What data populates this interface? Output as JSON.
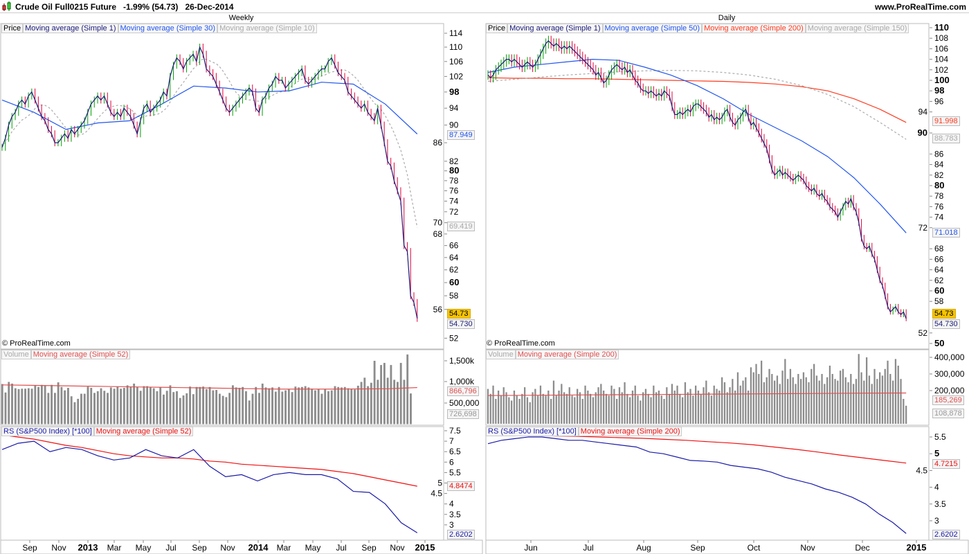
{
  "header": {
    "title": "Crude Oil Full0215 Future",
    "change": "-1.99% (54.73)",
    "date": "26-Dec-2014",
    "site": "www.ProRealTime.com"
  },
  "colors": {
    "price_line": "#1a1a7a",
    "ma_blue": "#2255ee",
    "ma_red": "#ff3b1f",
    "ma_gray": "#aaaaaa",
    "up": "#00a000",
    "down": "#e0003a",
    "volume": "#8c8c8c",
    "volume_ma": "#e05050",
    "rs": "#1a1aa8",
    "rs_ma": "#ee1111",
    "last_bg": "#f5c400"
  },
  "weekly": {
    "title": "Weekly",
    "legend": {
      "price": "Price",
      "ma1": "Moving average (Simple 1)",
      "ma30": "Moving average (Simple 30)",
      "ma10": "Moving average (Simple 10)"
    },
    "copyright": "© ProRealTime.com",
    "volume_legend": {
      "volume": "Volume",
      "ma": "Moving average (Simple 52)"
    },
    "rs_legend": {
      "rs": "RS (S&P500 Index) [*100]",
      "ma": "Moving average (Simple 52)"
    },
    "value_labels": {
      "ma30": "87.949",
      "ma10": "69.419",
      "last": "54.73",
      "ma1": "54.730",
      "vol_ma": "866,796",
      "vol": "726,698",
      "rs_ma": "4.8474",
      "rs": "2.6202"
    },
    "x_labels": [
      "Sep",
      "Nov",
      "2013",
      "Mar",
      "May",
      "Jul",
      "Sep",
      "Nov",
      "2014",
      "Mar",
      "May",
      "Jul",
      "Sep",
      "Nov",
      "2015"
    ]
  },
  "daily": {
    "title": "Daily",
    "legend": {
      "price": "Price",
      "ma1": "Moving average (Simple 1)",
      "ma50": "Moving average (Simple 50)",
      "ma200": "Moving average (Simple 200)",
      "ma150": "Moving average (Simple 150)"
    },
    "copyright": "© ProRealTime.com",
    "volume_legend": {
      "volume": "Volume",
      "ma": "Moving average (Simple 200)"
    },
    "rs_legend": {
      "rs": "RS (S&P500 Index) [*100]",
      "ma": "Moving average (Simple 200)"
    },
    "value_labels": {
      "ma200": "91.998",
      "ma150": "88.783",
      "ma50": "71.018",
      "last": "54.73",
      "ma1": "54.730",
      "vol_ma": "185,269",
      "vol": "108,878",
      "rs_ma": "4.7215",
      "rs": "2.6202"
    },
    "x_labels": [
      "Jun",
      "Jul",
      "Aug",
      "Sep",
      "Oct",
      "Nov",
      "Dec",
      "2015"
    ]
  },
  "chart_data": [
    {
      "type": "line",
      "title": "Crude Oil Full0215 Future - Weekly",
      "scale": "log",
      "ylim": [
        50,
        116
      ],
      "y_ticks": [
        "114",
        "110",
        "106",
        "102",
        "98",
        "94",
        "90",
        "86",
        "82",
        "80",
        "78",
        "76",
        "74",
        "72",
        "70",
        "68",
        "66",
        "64",
        "62",
        "60",
        "58",
        "56",
        "52"
      ],
      "close": [
        85,
        87,
        90,
        92,
        93,
        95,
        96,
        95,
        97,
        98,
        96,
        94,
        92,
        91,
        89,
        88,
        86,
        86,
        87,
        88,
        87,
        89,
        88,
        89,
        90,
        91,
        93,
        95,
        96,
        97,
        96,
        97,
        95,
        93,
        92,
        93,
        92,
        94,
        93,
        92,
        90,
        88,
        91,
        94,
        95,
        93,
        94,
        95,
        96,
        98,
        97,
        102,
        105,
        107,
        106,
        104,
        106,
        107,
        108,
        106,
        110,
        108,
        104,
        103,
        102,
        100,
        98,
        96,
        94,
        93,
        94,
        95,
        96,
        97,
        98,
        99,
        98,
        94,
        93,
        96,
        97,
        99,
        100,
        102,
        101,
        101,
        99,
        100,
        101,
        102,
        103,
        104,
        101,
        100,
        101,
        102,
        103,
        104,
        104,
        106,
        107,
        105,
        103,
        102,
        101,
        98,
        97,
        96,
        95,
        94,
        95,
        93,
        92,
        91,
        94,
        90,
        86,
        82,
        81,
        78,
        76,
        74,
        66,
        65,
        58,
        57,
        54.73
      ],
      "ma30_sampled": [
        96,
        93,
        89,
        90.5,
        91,
        95,
        99.5,
        99,
        98,
        98.3,
        100.5,
        100,
        95,
        87.949
      ],
      "volume_ylim": [
        0,
        1700000
      ],
      "volume_ticks": [
        "1,500k",
        "1,000k",
        "500,000"
      ],
      "volume_k": [
        950,
        750,
        1000,
        960,
        850,
        830,
        840,
        840,
        850,
        840,
        920,
        880,
        930,
        920,
        740,
        930,
        740,
        990,
        880,
        800,
        860,
        660,
        520,
        600,
        720,
        720,
        890,
        860,
        740,
        780,
        850,
        790,
        740,
        870,
        840,
        890,
        840,
        860,
        920,
        880,
        960,
        880,
        790,
        900,
        900,
        880,
        850,
        780,
        880,
        700,
        790,
        920,
        760,
        780,
        620,
        680,
        730,
        890,
        710,
        880,
        880,
        890,
        830,
        880,
        800,
        810,
        720,
        670,
        640,
        740,
        920,
        870,
        860,
        880,
        780,
        560,
        720,
        880,
        740,
        960,
        870,
        850,
        870,
        770,
        880,
        770,
        800,
        820,
        760,
        890,
        870,
        880,
        900,
        870,
        840,
        800,
        820,
        720,
        820,
        780,
        800,
        900,
        880,
        870,
        880,
        850,
        840,
        820,
        910,
        1000,
        1100,
        900,
        980,
        1500,
        1050,
        1400,
        1450,
        1100,
        1400,
        1050,
        1000,
        1450,
        1050,
        1650,
        727
      ],
      "volume_ma_k_sampled": [
        930,
        920,
        910,
        900,
        890,
        880,
        870,
        860,
        850,
        840,
        830,
        830,
        830,
        835,
        840,
        866.796
      ],
      "rs_ylim": [
        2.5,
        7.6
      ],
      "rs_ticks": [
        "7.5",
        "7",
        "6.5",
        "6",
        "5.5",
        "5",
        "4.5",
        "4",
        "3.5",
        "3"
      ],
      "rs_sampled": [
        6.6,
        6.9,
        7.0,
        6.5,
        6.7,
        6.6,
        6.3,
        6.1,
        6.2,
        6.6,
        6.3,
        6.2,
        6.6,
        5.8,
        5.3,
        5.4,
        5.1,
        5.4,
        5.5,
        5.4,
        5.4,
        5.2,
        4.6,
        4.55,
        4.0,
        3.1,
        2.6202
      ],
      "rs_ma_sampled": [
        7.3,
        7.2,
        7.1,
        6.95,
        6.8,
        6.7,
        6.55,
        6.4,
        6.3,
        6.25,
        6.2,
        6.2,
        6.15,
        6.05,
        6.0,
        5.9,
        5.85,
        5.8,
        5.75,
        5.7,
        5.65,
        5.55,
        5.45,
        5.3,
        5.15,
        5.0,
        4.8474
      ]
    },
    {
      "type": "line",
      "title": "Crude Oil Full0215 Future - Daily",
      "scale": "linear",
      "ylim": [
        49,
        111
      ],
      "y_ticks": [
        "110",
        "108",
        "106",
        "104",
        "102",
        "100",
        "98",
        "96",
        "94",
        "90",
        "86",
        "84",
        "82",
        "80",
        "78",
        "76",
        "74",
        "72",
        "68",
        "66",
        "64",
        "62",
        "60",
        "58",
        "52",
        "50"
      ],
      "close": [
        101,
        100.5,
        101,
        102,
        102.5,
        103,
        103.5,
        104,
        104,
        103.5,
        104,
        103.5,
        103,
        102.5,
        103,
        103.5,
        103,
        102.5,
        103,
        104,
        105,
        106,
        107,
        107.5,
        107,
        106.5,
        107,
        106.5,
        106,
        106.5,
        106,
        106.5,
        106,
        105.5,
        105,
        104.5,
        104,
        103.5,
        103,
        102.5,
        102,
        101,
        101.5,
        100.5,
        99.5,
        100,
        101,
        102,
        102.5,
        103,
        102.5,
        102,
        102.5,
        101.5,
        102,
        101,
        100,
        99.5,
        98.5,
        98,
        98,
        97.5,
        98,
        97.5,
        97,
        97.5,
        97,
        98,
        97.5,
        97,
        95,
        93.5,
        93.5,
        94,
        93.5,
        94,
        94.5,
        94,
        95,
        95.5,
        95.5,
        95,
        94.5,
        94,
        93,
        93.5,
        92.5,
        93,
        92.5,
        93,
        94,
        94.5,
        93,
        92,
        91.5,
        92.5,
        93,
        94,
        94.5,
        93,
        91.5,
        92,
        91,
        90,
        89,
        88,
        87,
        85,
        83,
        82,
        82.5,
        83,
        82,
        82.5,
        82,
        81.5,
        81,
        81.5,
        82,
        81.5,
        81,
        80,
        79.5,
        79,
        79.5,
        78.5,
        78,
        78.5,
        77.5,
        77,
        76,
        75.5,
        75,
        74,
        75,
        76,
        77,
        76.5,
        77.5,
        76,
        75,
        73,
        70,
        68.5,
        68,
        68.5,
        67,
        66,
        64,
        62,
        61,
        59,
        57,
        56,
        56.5,
        57,
        56,
        55.5,
        56,
        54.73
      ],
      "ma50_sampled": [
        101.5,
        102.5,
        103,
        103.5,
        104,
        103.8,
        102.5,
        101,
        99,
        96.5,
        93.5,
        91,
        88.5,
        85.5,
        81.5,
        76.5,
        71.018
      ],
      "ma200_sampled": [
        100.5,
        100.4,
        100.4,
        100.3,
        100.3,
        100.2,
        100.1,
        100,
        99.9,
        99.8,
        99.6,
        99.3,
        98.8,
        98,
        96.5,
        94.5,
        91.998
      ],
      "ma150_sampled": [
        99.8,
        100.2,
        100.6,
        101,
        101.3,
        101.6,
        101.8,
        101.9,
        101.8,
        101.5,
        101,
        100.2,
        99,
        97.3,
        95,
        92,
        88.783
      ],
      "volume_ylim": [
        0,
        420000
      ],
      "volume_ticks": [
        "400,000",
        "300,000",
        "200,000"
      ],
      "volume_k": [
        210,
        180,
        230,
        150,
        200,
        170,
        220,
        190,
        160,
        140,
        200,
        170,
        150,
        180,
        220,
        160,
        130,
        190,
        210,
        170,
        230,
        180,
        170,
        200,
        150,
        260,
        170,
        200,
        240,
        190,
        180,
        220,
        170,
        160,
        210,
        190,
        150,
        230,
        200,
        180,
        160,
        190,
        220,
        240,
        200,
        180,
        170,
        230,
        210,
        150,
        220,
        190,
        250,
        180,
        160,
        200,
        230,
        170,
        140,
        190,
        210,
        180,
        160,
        230,
        190,
        200,
        170,
        150,
        220,
        180,
        240,
        200,
        230,
        180,
        160,
        250,
        190,
        210,
        170,
        230,
        200,
        180,
        220,
        260,
        190,
        170,
        230,
        210,
        200,
        280,
        250,
        190,
        220,
        270,
        200,
        310,
        230,
        260,
        280,
        200,
        340,
        310,
        360,
        300,
        380,
        250,
        280,
        330,
        300,
        260,
        290,
        240,
        320,
        390,
        270,
        330,
        280,
        240,
        300,
        270,
        310,
        280,
        250,
        330,
        360,
        290,
        260,
        300,
        240,
        280,
        350,
        300,
        270,
        260,
        320,
        330,
        280,
        250,
        300,
        240,
        270,
        420,
        310,
        260,
        400,
        290,
        240,
        330,
        270,
        310,
        290,
        330,
        380,
        300,
        260,
        390,
        350,
        270,
        150,
        108.878
      ],
      "volume_ma_k_sampled": [
        170,
        172,
        174,
        176,
        178,
        180,
        182,
        184,
        185.269
      ],
      "rs_ylim": [
        2.5,
        5.7
      ],
      "rs_ticks": [
        "5.5",
        "5",
        "4.5",
        "4",
        "3.5",
        "3"
      ],
      "rs_sampled": [
        5.3,
        5.4,
        5.45,
        5.5,
        5.5,
        5.45,
        5.4,
        5.4,
        5.35,
        5.3,
        5.25,
        5.2,
        5.05,
        5.0,
        4.9,
        4.8,
        4.78,
        4.75,
        4.65,
        4.6,
        4.55,
        4.45,
        4.3,
        4.2,
        4.1,
        3.95,
        3.85,
        3.7,
        3.5,
        3.2,
        2.95,
        2.6202
      ],
      "rs_ma_sampled": [
        5.55,
        5.55,
        5.54,
        5.53,
        5.52,
        5.5,
        5.48,
        5.46,
        5.43,
        5.4,
        5.36,
        5.32,
        5.27,
        5.2,
        5.13,
        5.05,
        4.96,
        4.88,
        4.8,
        4.7215
      ]
    }
  ]
}
